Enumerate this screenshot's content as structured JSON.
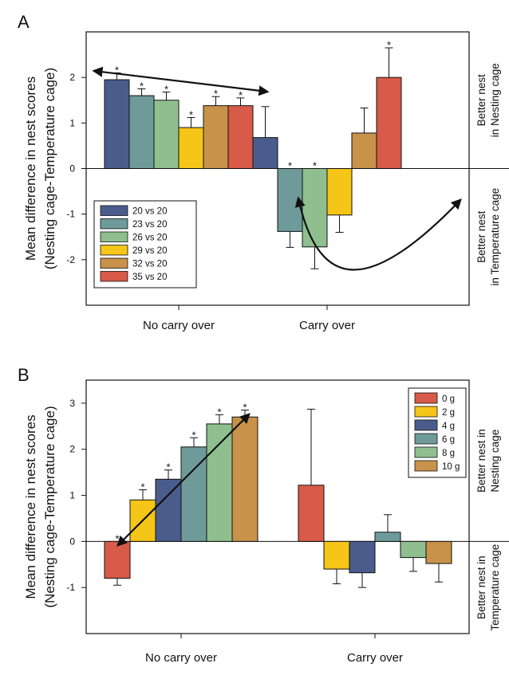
{
  "chart_data": [
    {
      "panel_label": "A",
      "type": "bar",
      "ylabel": "Mean difference in nest scores",
      "ylabel2": "(Nesting cage-Temperature cage)",
      "ylim": [
        -3,
        3
      ],
      "yticks": [
        -2,
        -1,
        0,
        1,
        2
      ],
      "categories": [
        "No carry over",
        "Carry over"
      ],
      "side_label_top": [
        "Better nest",
        "in Nesting cage"
      ],
      "side_label_bottom": [
        "Better nest",
        "in Temperature cage"
      ],
      "legend_position": "bottom-left",
      "series": [
        {
          "name": "20 vs 20",
          "color": "#4a5c8c",
          "values": [
            1.95,
            0.68
          ],
          "errors": [
            0.15,
            0.68
          ],
          "sig": [
            "*",
            ""
          ]
        },
        {
          "name": "23 vs 20",
          "color": "#6e9a9a",
          "values": [
            1.6,
            -1.38
          ],
          "errors": [
            0.15,
            0.35
          ],
          "sig": [
            "*",
            "*"
          ]
        },
        {
          "name": "26 vs 20",
          "color": "#8fbf8f",
          "values": [
            1.5,
            -1.72
          ],
          "errors": [
            0.18,
            0.48
          ],
          "sig": [
            "*",
            "*"
          ]
        },
        {
          "name": "29 vs 20",
          "color": "#f5c518",
          "values": [
            0.9,
            -1.02
          ],
          "errors": [
            0.22,
            0.38
          ],
          "sig": [
            "*",
            ""
          ]
        },
        {
          "name": "32 vs 20",
          "color": "#c8924a",
          "values": [
            1.38,
            0.78
          ],
          "errors": [
            0.2,
            0.55
          ],
          "sig": [
            "*",
            ""
          ]
        },
        {
          "name": "35 vs 20",
          "color": "#d85a48",
          "values": [
            1.38,
            2.0
          ],
          "errors": [
            0.17,
            0.65
          ],
          "sig": [
            "*",
            "*"
          ]
        }
      ]
    },
    {
      "panel_label": "B",
      "type": "bar",
      "ylabel": "Mean difference in nest scores",
      "ylabel2": "(Nesting cage-Temperature cage)",
      "ylim": [
        -2,
        3.5
      ],
      "yticks": [
        -1,
        0,
        1,
        2,
        3
      ],
      "categories": [
        "No carry over",
        "Carry over"
      ],
      "side_label_top": [
        "Better nest in",
        "Nesting cage"
      ],
      "side_label_bottom": [
        "Better nest in",
        "Temperature cage"
      ],
      "legend_position": "top-right",
      "series": [
        {
          "name": "0 g",
          "color": "#d85a48",
          "values": [
            -0.8,
            1.22
          ],
          "errors": [
            0.15,
            1.65
          ],
          "sig": [
            "*",
            ""
          ]
        },
        {
          "name": "2 g",
          "color": "#f5c518",
          "values": [
            0.9,
            -0.6
          ],
          "errors": [
            0.22,
            0.32
          ],
          "sig": [
            "*",
            ""
          ]
        },
        {
          "name": "4 g",
          "color": "#4a5c8c",
          "values": [
            1.35,
            -0.68
          ],
          "errors": [
            0.2,
            0.32
          ],
          "sig": [
            "*",
            ""
          ]
        },
        {
          "name": "6 g",
          "color": "#6e9a9a",
          "values": [
            2.05,
            0.2
          ],
          "errors": [
            0.2,
            0.38
          ],
          "sig": [
            "*",
            ""
          ]
        },
        {
          "name": "8 g",
          "color": "#8fbf8f",
          "values": [
            2.55,
            -0.35
          ],
          "errors": [
            0.2,
            0.3
          ],
          "sig": [
            "*",
            ""
          ]
        },
        {
          "name": "10 g",
          "color": "#c8924a",
          "values": [
            2.7,
            -0.48
          ],
          "errors": [
            0.15,
            0.4
          ],
          "sig": [
            "*",
            ""
          ]
        }
      ]
    }
  ]
}
